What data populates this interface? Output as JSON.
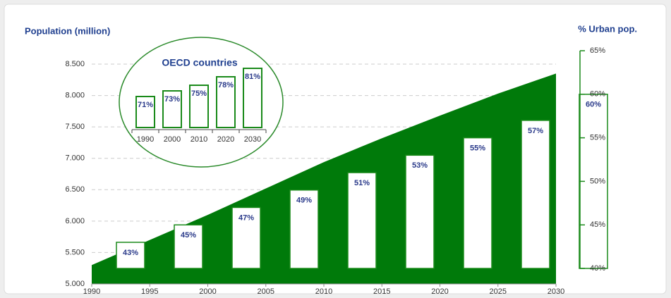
{
  "chart_data": [
    {
      "type": "combo",
      "ylabel": "Population (million)",
      "y2label": "% Urban pop.",
      "x": [
        1990,
        1995,
        2000,
        2005,
        2010,
        2015,
        2020,
        2025,
        2030
      ],
      "xlim": [
        1990,
        2030
      ],
      "xticks": [
        1990,
        1995,
        2000,
        2005,
        2010,
        2015,
        2020,
        2025,
        2030
      ],
      "ylim": [
        5,
        8.5
      ],
      "yticks": [
        {
          "value": 5,
          "label": "5.000"
        },
        {
          "value": 5.5,
          "label": "5.500"
        },
        {
          "value": 6,
          "label": "6.000"
        },
        {
          "value": 6.5,
          "label": "6.500"
        },
        {
          "value": 7,
          "label": "7.000"
        },
        {
          "value": 7.5,
          "label": "7.500"
        },
        {
          "value": 8,
          "label": "8.000"
        },
        {
          "value": 8.5,
          "label": "8.500"
        }
      ],
      "y2lim": [
        40,
        65
      ],
      "y2ticks": [
        {
          "value": 40,
          "label": "40%"
        },
        {
          "value": 45,
          "label": "45%"
        },
        {
          "value": 50,
          "label": "50%"
        },
        {
          "value": 55,
          "label": "55%"
        },
        {
          "value": 60,
          "label": "60%"
        },
        {
          "value": 65,
          "label": "65%"
        }
      ],
      "grid": true,
      "series": [
        {
          "type": "area",
          "color": "#007a0a",
          "values": [
            5.3,
            5.7,
            6.1,
            6.52,
            6.94,
            7.32,
            7.68,
            8.03,
            8.35
          ]
        },
        {
          "type": "bar",
          "axis": "y2",
          "color": "#ffffff",
          "values": [
            43,
            45,
            47,
            49,
            51,
            53,
            55,
            57,
            60
          ],
          "value_labels": [
            "43%",
            "45%",
            "47%",
            "49%",
            "51%",
            "53%",
            "55%",
            "57%",
            "60%"
          ]
        }
      ]
    },
    {
      "type": "bar",
      "title": "OECD countries",
      "categories": [
        "1990",
        "2000",
        "2010",
        "2020",
        "2030"
      ],
      "values": [
        71,
        73,
        75,
        78,
        81
      ],
      "value_labels": [
        "71%",
        "73%",
        "75%",
        "78%",
        "81%"
      ],
      "ylim": [
        60,
        85
      ],
      "color": "#ffffff"
    }
  ]
}
